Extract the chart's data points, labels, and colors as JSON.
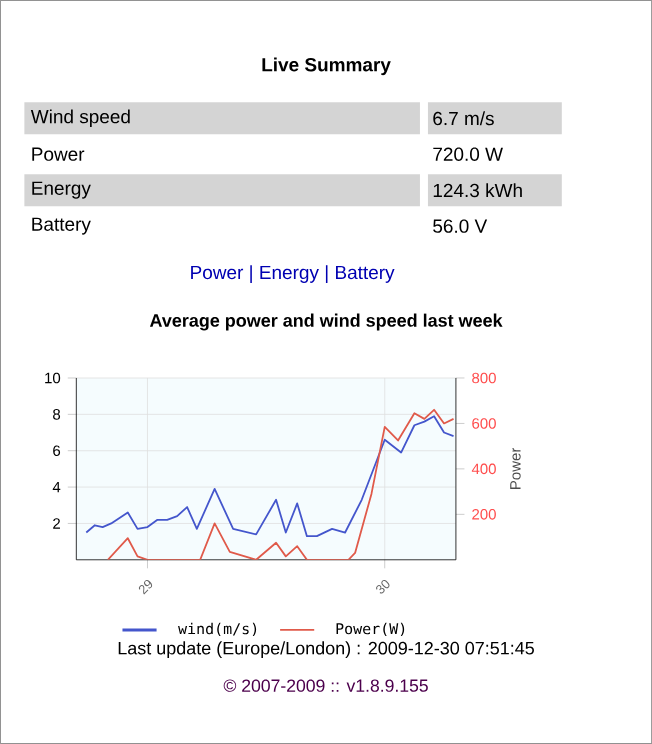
{
  "chart_data": {
    "type": "line",
    "title": "Average power and wind speed last week",
    "y2label": "Power",
    "xlim": [
      28.7,
      30.3
    ],
    "xticks": [
      29,
      30
    ],
    "ylim": [
      0,
      10
    ],
    "yticks": [
      2,
      4,
      6,
      8,
      10
    ],
    "y2lim": [
      0,
      800
    ],
    "y2ticks": [
      200,
      400,
      600,
      800
    ],
    "grid": true,
    "legend": "bottom",
    "series": [
      {
        "name": "wind(m/s)",
        "color": "#4456cc",
        "x": [
          28.742,
          28.778,
          28.811,
          28.847,
          28.917,
          28.958,
          29.0,
          29.042,
          29.083,
          29.125,
          29.167,
          29.208,
          29.283,
          29.361,
          29.458,
          29.542,
          29.583,
          29.631,
          29.672,
          29.714,
          29.778,
          29.833,
          29.903,
          30.0,
          30.069,
          30.125,
          30.167,
          30.208,
          30.25,
          30.29
        ],
        "values": [
          1.5,
          1.9,
          1.8,
          2.0,
          2.6,
          1.7,
          1.8,
          2.2,
          2.2,
          2.4,
          2.9,
          1.7,
          3.9,
          1.7,
          1.4,
          3.3,
          1.5,
          3.1,
          1.3,
          1.3,
          1.7,
          1.5,
          3.3,
          6.6,
          5.9,
          7.4,
          7.6,
          7.9,
          7.0,
          6.8
        ]
      },
      {
        "name": "Power(W)",
        "color": "#e05a4a",
        "axis": "y2",
        "x": [
          28.833,
          28.917,
          28.958,
          29.0,
          29.222,
          29.283,
          29.347,
          29.458,
          29.542,
          29.583,
          29.631,
          29.672,
          29.847,
          29.875,
          29.944,
          30.0,
          30.056,
          30.125,
          30.167,
          30.208,
          30.25,
          30.29
        ],
        "values": [
          0,
          95,
          15,
          0,
          0,
          160,
          35,
          0,
          75,
          15,
          60,
          0,
          0,
          30,
          290,
          585,
          525,
          645,
          620,
          660,
          600,
          620
        ]
      }
    ],
    "annotations": [
      "Live Summary",
      "Wind speed",
      "6.7 m/s",
      "Power",
      "720.0 W",
      "Energy",
      "124.3 kWh",
      "Battery",
      "56.0 V",
      "Power | Energy | Battery",
      "Last update (Europe/London) : 2009-12-30 07:51:45",
      "© 2007-2009 :: v1.8.9.155"
    ]
  }
}
